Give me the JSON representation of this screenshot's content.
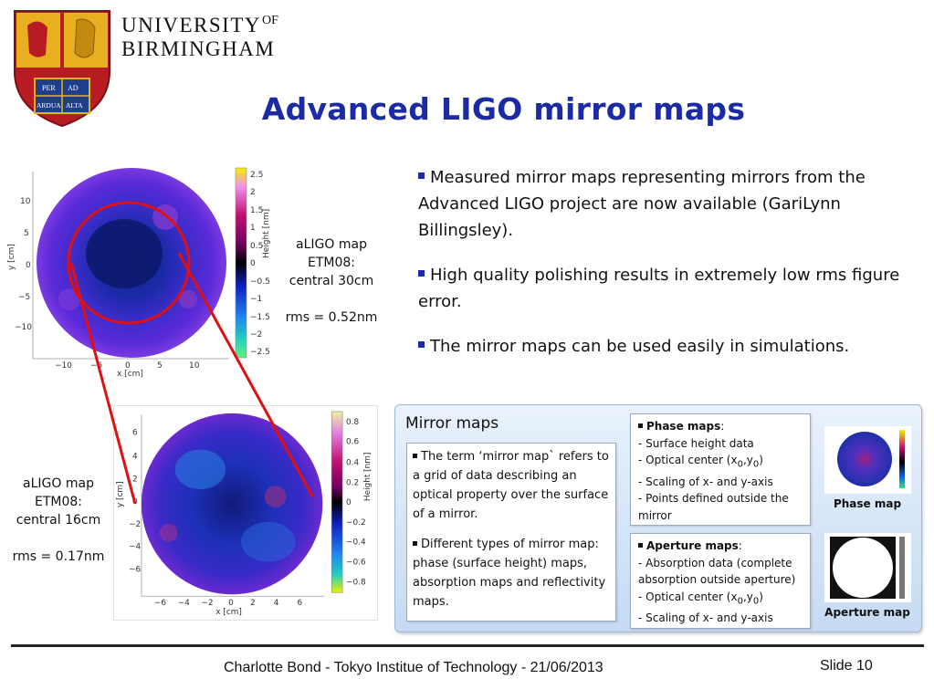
{
  "header": {
    "university_line1": "UNIVERSITY",
    "university_of": "OF",
    "university_line2": "BIRMINGHAM",
    "crest_motto": [
      "PER",
      "AD",
      "ARDUA",
      "ALTA"
    ],
    "title": "Advanced LIGO mirror maps"
  },
  "bullets": [
    "Measured mirror maps representing mirrors from the Advanced LIGO project are now available (GariLynn Billingsley).",
    "High quality polishing results in extremely low rms figure error.",
    "The mirror maps can be used easily in simulations."
  ],
  "map_labels": {
    "top": [
      "aLIGO map",
      "ETM08:",
      "central 30cm",
      "rms = 0.52nm"
    ],
    "bottom": [
      "aLIGO map",
      "ETM08:",
      "central 16cm",
      "rms = 0.17nm"
    ]
  },
  "plot_top": {
    "xlabel": "x [cm]",
    "ylabel": "y [cm]",
    "colorbar_label": "Height [nm]",
    "xticks": [
      "−10",
      "−5",
      "0",
      "5",
      "10"
    ],
    "yticks": [
      "10",
      "5",
      "0",
      "−5",
      "−10"
    ],
    "cticks": [
      "2.5",
      "2",
      "1.5",
      "1",
      "0.5",
      "0",
      "−0.5",
      "−1",
      "−1.5",
      "−2",
      "−2.5"
    ]
  },
  "plot_bottom": {
    "xlabel": "x [cm]",
    "ylabel": "y [cm]",
    "colorbar_label": "Height [nm]",
    "xticks": [
      "−6",
      "−4",
      "−2",
      "0",
      "2",
      "4",
      "6"
    ],
    "yticks": [
      "6",
      "4",
      "2",
      "0",
      "−2",
      "−4",
      "−6"
    ],
    "cticks": [
      "0.8",
      "0.6",
      "0.4",
      "0.2",
      "0",
      "−0.2",
      "−0.4",
      "−0.6",
      "−0.8"
    ]
  },
  "mirror_maps_panel": {
    "title": "Mirror maps",
    "definition": [
      "The term ‘mirror map` refers to a grid of data describing an optical property over the surface of a mirror.",
      "Different types of mirror map: phase (surface height) maps, absorption maps and reflectivity maps."
    ],
    "phase": {
      "heading": "Phase maps",
      "colon": ":",
      "items": [
        "- Surface height data",
        "- Optical center (x",
        "- Scaling of x- and y-axis",
        "- Points defined outside the mirror"
      ],
      "sub0": "0",
      "comma_y": ",y",
      "sub0b": "0",
      "close": ")"
    },
    "aperture": {
      "heading": "Aperture maps",
      "colon": ":",
      "items": [
        "- Absorption data (complete absorption outside aperture)",
        "- Optical center (x",
        "- Scaling of x- and y-axis"
      ],
      "sub0": "0",
      "comma_y": ",y",
      "sub0b": "0",
      "close": ")"
    },
    "thumb_phase_caption": "Phase map",
    "thumb_aperture_caption": "Aperture map"
  },
  "footer": {
    "text": "Charlotte Bond - Tokyo Institue of Technology - 21/06/2013",
    "slide": "Slide 10"
  },
  "colors": {
    "title": "#1c2aa3",
    "highlight_ring": "#e01010",
    "panel_bg": "#cfe0f5"
  }
}
